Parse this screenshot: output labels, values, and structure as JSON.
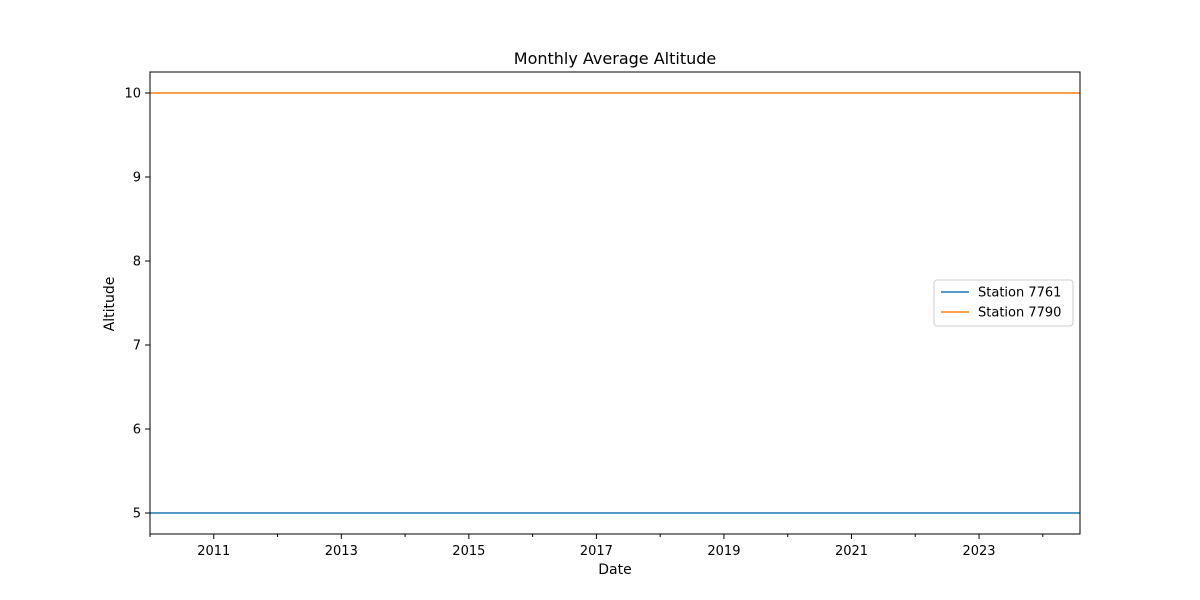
{
  "chart_data": {
    "type": "line",
    "title": "Monthly Average Altitude",
    "xlabel": "Date",
    "ylabel": "Altitude",
    "x_start": "2010-01",
    "x_end": "2024-08",
    "xlim": [
      "2010-01",
      "2024-08"
    ],
    "ylim": [
      4.75,
      10.25
    ],
    "y_ticks": [
      5,
      6,
      7,
      8,
      9,
      10
    ],
    "x_ticks": [
      "2011",
      "2013",
      "2015",
      "2017",
      "2019",
      "2021",
      "2023"
    ],
    "grid": false,
    "legend_position": "center-right",
    "series": [
      {
        "name": "Station 7761",
        "color": "#1f77b4",
        "x": [
          "2010-01",
          "2024-08"
        ],
        "values": [
          5,
          5
        ]
      },
      {
        "name": "Station 7790",
        "color": "#ff7f0e",
        "x": [
          "2010-01",
          "2024-08"
        ],
        "values": [
          10,
          10
        ]
      }
    ]
  }
}
